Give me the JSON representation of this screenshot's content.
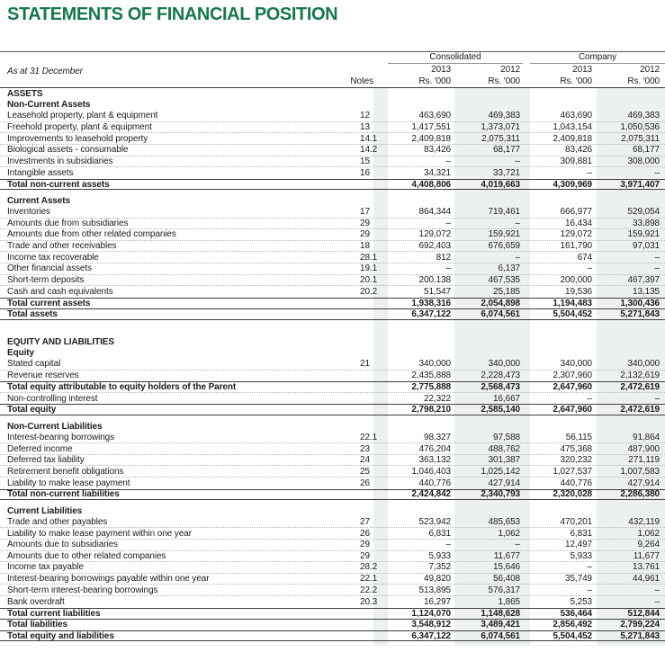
{
  "title": "STATEMENTS OF FINANCIAL POSITION",
  "table": {
    "as_at": "As at 31 December",
    "notes_label": "Notes",
    "group_labels": [
      "Consolidated",
      "Company"
    ],
    "year_cols": [
      "2013",
      "2012",
      "2013",
      "2012"
    ],
    "unit": "Rs. '000",
    "colors": {
      "title_green": "#17774b",
      "band_tint": "#ecf1ee"
    },
    "rows": [
      {
        "type": "section",
        "label": "ASSETS"
      },
      {
        "type": "section",
        "label": "Non-Current Assets"
      },
      {
        "type": "data",
        "label": "Leasehold property, plant & equipment",
        "note": "12",
        "values": [
          "463,690",
          "469,383",
          "463,690",
          "469,383"
        ]
      },
      {
        "type": "data",
        "label": "Freehold property, plant & equipment",
        "note": "13",
        "values": [
          "1,417,551",
          "1,373,071",
          "1,043,154",
          "1,050,536"
        ]
      },
      {
        "type": "data",
        "label": "Improvements to leasehold property",
        "note": "14.1",
        "values": [
          "2,409,818",
          "2,075,311",
          "2,409,818",
          "2,075,311"
        ]
      },
      {
        "type": "data",
        "label": "Biological assets - consumable",
        "note": "14.2",
        "values": [
          "83,426",
          "68,177",
          "83,426",
          "68,177"
        ]
      },
      {
        "type": "data",
        "label": "Investments in subsidiaries",
        "note": "15",
        "values": [
          "–",
          "–",
          "309,881",
          "308,000"
        ]
      },
      {
        "type": "data",
        "label": "Intangible assets",
        "note": "16",
        "values": [
          "34,321",
          "33,721",
          "–",
          "–"
        ]
      },
      {
        "type": "total",
        "label": "Total non-current assets",
        "note": "",
        "values": [
          "4,408,806",
          "4,019,663",
          "4,309,969",
          "3,971,407"
        ]
      },
      {
        "type": "gap"
      },
      {
        "type": "section",
        "label": "Current Assets"
      },
      {
        "type": "data",
        "label": "Inventories",
        "note": "17",
        "values": [
          "864,344",
          "719,461",
          "666,977",
          "529,054"
        ]
      },
      {
        "type": "data",
        "label": "Amounts due from subsidiaries",
        "note": "29",
        "values": [
          "–",
          "–",
          "16,434",
          "33,898"
        ]
      },
      {
        "type": "data",
        "label": "Amounts due from other related companies",
        "note": "29",
        "values": [
          "129,072",
          "159,921",
          "129,072",
          "159,921"
        ]
      },
      {
        "type": "data",
        "label": "Trade and other receivables",
        "note": "18",
        "values": [
          "692,403",
          "676,659",
          "161,790",
          "97,031"
        ]
      },
      {
        "type": "data",
        "label": "Income tax recoverable",
        "note": "28.1",
        "values": [
          "812",
          "–",
          "674",
          "–"
        ]
      },
      {
        "type": "data",
        "label": "Other financial assets",
        "note": "19.1",
        "values": [
          "–",
          "6,137",
          "–",
          "–"
        ]
      },
      {
        "type": "data",
        "label": "Short-term deposits",
        "note": "20.1",
        "values": [
          "200,138",
          "467,535",
          "200,000",
          "467,397"
        ]
      },
      {
        "type": "data",
        "label": "Cash and cash equivalents",
        "note": "20.2",
        "values": [
          "51,547",
          "25,185",
          "19,536",
          "13,135"
        ]
      },
      {
        "type": "total",
        "label": "Total current assets",
        "note": "",
        "values": [
          "1,938,316",
          "2,054,898",
          "1,194,483",
          "1,300,436"
        ]
      },
      {
        "type": "total",
        "label": "Total assets",
        "note": "",
        "values": [
          "6,347,122",
          "6,074,561",
          "5,504,452",
          "5,271,843"
        ]
      },
      {
        "type": "gap-lg"
      },
      {
        "type": "section",
        "label": "EQUITY AND LIABILITIES"
      },
      {
        "type": "section",
        "label": "Equity"
      },
      {
        "type": "data",
        "label": "Stated capital",
        "note": "21",
        "values": [
          "340,000",
          "340,000",
          "340,000",
          "340,000"
        ]
      },
      {
        "type": "data",
        "label": "Revenue reserves",
        "note": "",
        "values": [
          "2,435,888",
          "2,228,473",
          "2,307,960",
          "2,132,619"
        ]
      },
      {
        "type": "total",
        "label": "Total equity attributable to equity holders of the Parent",
        "note": "",
        "values": [
          "2,775,888",
          "2,568,473",
          "2,647,960",
          "2,472,619"
        ]
      },
      {
        "type": "data",
        "label": "Non-controlling interest",
        "note": "",
        "values": [
          "22,322",
          "16,667",
          "–",
          "–"
        ]
      },
      {
        "type": "total",
        "label": "Total equity",
        "note": "",
        "values": [
          "2,798,210",
          "2,585,140",
          "2,647,960",
          "2,472,619"
        ]
      },
      {
        "type": "gap"
      },
      {
        "type": "section",
        "label": "Non-Current Liabilities"
      },
      {
        "type": "data",
        "label": "Interest-bearing borrowings",
        "note": "22.1",
        "values": [
          "98,327",
          "97,588",
          "56,115",
          "91,864"
        ]
      },
      {
        "type": "data",
        "label": "Deferred income",
        "note": "23",
        "values": [
          "476,204",
          "488,762",
          "475,368",
          "487,900"
        ]
      },
      {
        "type": "data",
        "label": "Deferred tax liability",
        "note": "24",
        "values": [
          "363,132",
          "301,387",
          "320,232",
          "271,119"
        ]
      },
      {
        "type": "data",
        "label": "Retirement benefit obligations",
        "note": "25",
        "values": [
          "1,046,403",
          "1,025,142",
          "1,027,537",
          "1,007,583"
        ]
      },
      {
        "type": "data",
        "label": "Liability to make lease payment",
        "note": "26",
        "values": [
          "440,776",
          "427,914",
          "440,776",
          "427,914"
        ]
      },
      {
        "type": "total",
        "label": "Total non-current liabilities",
        "note": "",
        "values": [
          "2,424,842",
          "2,340,793",
          "2,320,028",
          "2,286,380"
        ]
      },
      {
        "type": "gap"
      },
      {
        "type": "section",
        "label": "Current Liabilities"
      },
      {
        "type": "data",
        "label": "Trade and other payables",
        "note": "27",
        "values": [
          "523,942",
          "485,653",
          "470,201",
          "432,119"
        ]
      },
      {
        "type": "data",
        "label": "Liability to make lease payment within one year",
        "note": "26",
        "values": [
          "6,831",
          "1,062",
          "6,831",
          "1,062"
        ]
      },
      {
        "type": "data",
        "label": "Amounts due to subsidiaries",
        "note": "29",
        "values": [
          "–",
          "–",
          "12,497",
          "9,264"
        ]
      },
      {
        "type": "data",
        "label": "Amounts due to other related companies",
        "note": "29",
        "values": [
          "5,933",
          "11,677",
          "5,933",
          "11,677"
        ]
      },
      {
        "type": "data",
        "label": "Income tax payable",
        "note": "28.2",
        "values": [
          "7,352",
          "15,646",
          "–",
          "13,761"
        ]
      },
      {
        "type": "data",
        "label": "Interest-bearing borrowings payable within one year",
        "note": "22.1",
        "values": [
          "49,820",
          "56,408",
          "35,749",
          "44,961"
        ]
      },
      {
        "type": "data",
        "label": "Short-term interest-bearing borrowings",
        "note": "22.2",
        "values": [
          "513,895",
          "576,317",
          "–",
          "–"
        ]
      },
      {
        "type": "data",
        "label": "Bank overdraft",
        "note": "20.3",
        "values": [
          "16,297",
          "1,865",
          "5,253",
          "–"
        ]
      },
      {
        "type": "total",
        "label": "Total current liabilities",
        "note": "",
        "values": [
          "1,124,070",
          "1,148,628",
          "536,464",
          "512,844"
        ]
      },
      {
        "type": "total",
        "label": "Total liabilities",
        "note": "",
        "values": [
          "3,548,912",
          "3,489,421",
          "2,856,492",
          "2,799,224"
        ]
      },
      {
        "type": "total",
        "label": "Total equity and liabilities",
        "note": "",
        "values": [
          "6,347,122",
          "6,074,561",
          "5,504,452",
          "5,271,843"
        ]
      }
    ]
  }
}
